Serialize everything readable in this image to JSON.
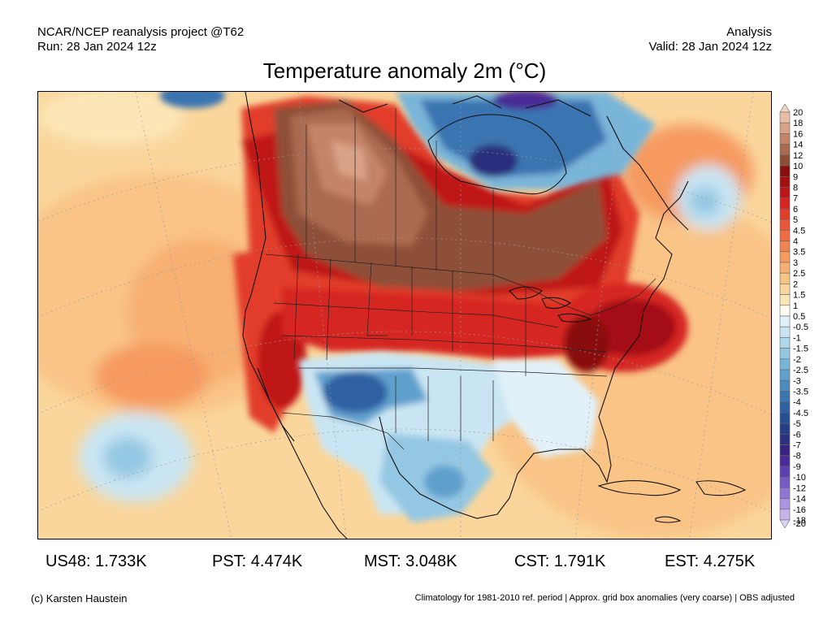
{
  "header": {
    "left_line1": "NCAR/NCEP reanalysis project @T62",
    "left_line2": "Run: 28 Jan 2024 12z",
    "right_line1": "Analysis",
    "right_line2": "Valid: 28 Jan 2024 12z"
  },
  "title": "Temperature anomaly 2m (°C)",
  "legend": {
    "levels": [
      {
        "label": "20",
        "color": "#f5d5c5"
      },
      {
        "label": "18",
        "color": "#e9bca5"
      },
      {
        "label": "16",
        "color": "#d9a286"
      },
      {
        "label": "14",
        "color": "#c48467"
      },
      {
        "label": "12",
        "color": "#aa6a4f"
      },
      {
        "label": "10",
        "color": "#8e4f37"
      },
      {
        "label": "9",
        "color": "#8a0d0f"
      },
      {
        "label": "8",
        "color": "#a40f12"
      },
      {
        "label": "7",
        "color": "#bf1518"
      },
      {
        "label": "6",
        "color": "#d62520"
      },
      {
        "label": "5",
        "color": "#e23d2b"
      },
      {
        "label": "4.5",
        "color": "#ea5637"
      },
      {
        "label": "4",
        "color": "#f06d43"
      },
      {
        "label": "3.5",
        "color": "#f38451"
      },
      {
        "label": "3",
        "color": "#f69a60"
      },
      {
        "label": "2.5",
        "color": "#f8af72"
      },
      {
        "label": "2",
        "color": "#f9c486"
      },
      {
        "label": "1.5",
        "color": "#fad69c"
      },
      {
        "label": "1",
        "color": "#fce6b7"
      },
      {
        "label": "0.5",
        "color": "#fffbf0"
      },
      {
        "label": "-0.5",
        "color": "#e2f1f9"
      },
      {
        "label": "-1",
        "color": "#c9e5f3"
      },
      {
        "label": "-1.5",
        "color": "#afd7ec"
      },
      {
        "label": "-2",
        "color": "#94c7e3"
      },
      {
        "label": "-2.5",
        "color": "#79b5d9"
      },
      {
        "label": "-3",
        "color": "#61a0cd"
      },
      {
        "label": "-3.5",
        "color": "#4c8bc0"
      },
      {
        "label": "-4",
        "color": "#3a75b1"
      },
      {
        "label": "-4.5",
        "color": "#2d61a2"
      },
      {
        "label": "-5",
        "color": "#244f93"
      },
      {
        "label": "-6",
        "color": "#233f86"
      },
      {
        "label": "-7",
        "color": "#2b2f7d"
      },
      {
        "label": "-8",
        "color": "#372480"
      },
      {
        "label": "-9",
        "color": "#4a2a96"
      },
      {
        "label": "-10",
        "color": "#5e3fb0"
      },
      {
        "label": "-12",
        "color": "#775ac6"
      },
      {
        "label": "-14",
        "color": "#9176d6"
      },
      {
        "label": "-16",
        "color": "#ab95e2"
      },
      {
        "label": "-18",
        "color": "#c5b5ec"
      },
      {
        "label": "-20",
        "color": "#ddd3f5"
      }
    ]
  },
  "stats": [
    {
      "label": "US48: 1.733K"
    },
    {
      "label": "PST: 4.474K"
    },
    {
      "label": "MST: 3.048K"
    },
    {
      "label": "CST: 1.791K"
    },
    {
      "label": "EST: 4.275K"
    }
  ],
  "footer": {
    "left": "(c) Karsten Haustein",
    "right": "Climatology for 1981-2010 ref. period | Approx. grid box anomalies (very coarse) | OBS adjusted"
  }
}
